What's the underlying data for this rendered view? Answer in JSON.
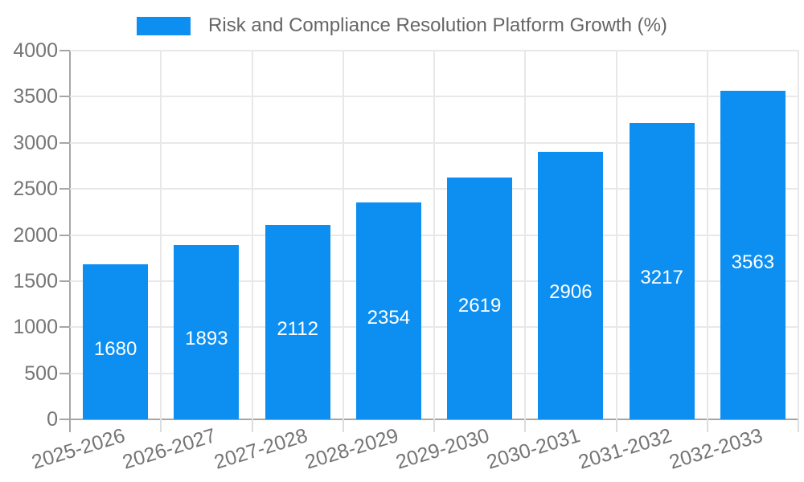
{
  "legend": {
    "label": "Risk and Compliance Resolution Platform Growth (%)"
  },
  "chart_data": {
    "type": "bar",
    "title": "",
    "series_name": "Risk and Compliance Resolution Platform Growth (%)",
    "categories": [
      "2025-2026",
      "2026-2027",
      "2027-2028",
      "2028-2029",
      "2029-2030",
      "2030-2031",
      "2031-2032",
      "2032-2033"
    ],
    "values": [
      1680,
      1893,
      2112,
      2354,
      2619,
      2906,
      3217,
      3563
    ],
    "value_labels": [
      "1680",
      "1893",
      "2112",
      "2354",
      "2619",
      "2906",
      "3217",
      "3563"
    ],
    "xlabel": "",
    "ylabel": "",
    "ylim": [
      0,
      4000
    ],
    "yticks": [
      0,
      500,
      1000,
      1500,
      2000,
      2500,
      3000,
      3500,
      4000
    ],
    "grid": "on",
    "legend_position": "top",
    "colors": {
      "bar": "#0d8ff2",
      "value_label": "#ffffff",
      "tick_text": "#757575",
      "legend_text": "#666666",
      "gridline": "#e8e8e8",
      "axis_line": "#a6a6a6"
    }
  }
}
